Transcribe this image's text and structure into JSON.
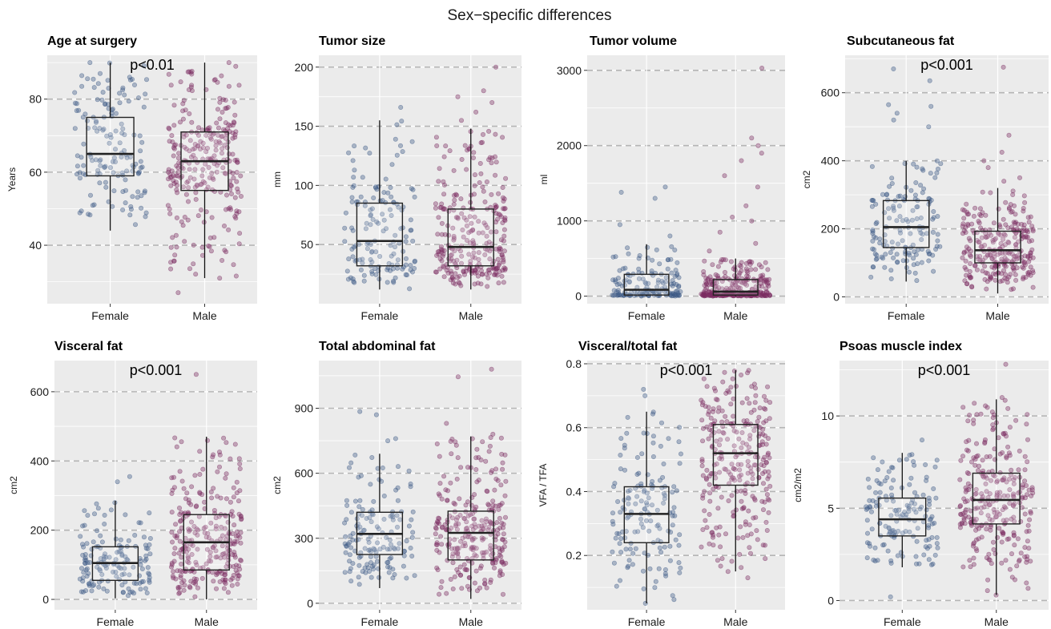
{
  "figure_title": "Sex−specific differences",
  "colors": {
    "female": "#3d5a85",
    "male": "#7b2d62",
    "panel_bg": "#ebebeb",
    "grid": "#ffffff",
    "ref_line": "#b5b5b5"
  },
  "chart_data": [
    {
      "type": "box",
      "title": "Age at surgery",
      "ylabel": "Years",
      "annotation": "p<0.01",
      "categories": [
        "Female",
        "Male"
      ],
      "ylim": [
        24,
        92
      ],
      "yticks": [
        40,
        60,
        80
      ],
      "yticklabels": [
        "40",
        "60",
        "80"
      ],
      "ref_lines": [
        40,
        60,
        80
      ],
      "minor_grid": [
        30,
        50,
        70,
        90
      ],
      "series": [
        {
          "q1": 59,
          "median": 65,
          "q3": 75,
          "whisker_low": 44,
          "whisker_high": 90,
          "n": 150,
          "outliers": [
            90
          ]
        },
        {
          "q1": 55,
          "median": 63,
          "q3": 71,
          "whisker_low": 31,
          "whisker_high": 90,
          "n": 280,
          "outliers": [
            27,
            31,
            90
          ]
        }
      ]
    },
    {
      "type": "box",
      "title": "Tumor size",
      "ylabel": "mm",
      "annotation": "",
      "categories": [
        "Female",
        "Male"
      ],
      "ylim": [
        0,
        210
      ],
      "yticks": [
        50,
        100,
        150,
        200
      ],
      "yticklabels": [
        "50",
        "100",
        "150",
        "200"
      ],
      "ref_lines": [
        50,
        100,
        150,
        200
      ],
      "minor_grid": [
        25,
        75,
        125,
        175
      ],
      "series": [
        {
          "q1": 32,
          "median": 53,
          "q3": 85,
          "whisker_low": 12,
          "whisker_high": 155,
          "n": 150,
          "outliers": [
            166
          ]
        },
        {
          "q1": 32,
          "median": 48,
          "q3": 80,
          "whisker_low": 12,
          "whisker_high": 148,
          "n": 280,
          "outliers": [
            155,
            162,
            170,
            175,
            180,
            200
          ]
        }
      ]
    },
    {
      "type": "box",
      "title": "Tumor volume",
      "ylabel": "ml",
      "annotation": "",
      "categories": [
        "Female",
        "Male"
      ],
      "ylim": [
        -100,
        3200
      ],
      "yticks": [
        0,
        1000,
        2000,
        3000
      ],
      "yticklabels": [
        "0",
        "1000",
        "2000",
        "3000"
      ],
      "ref_lines": [
        0,
        1000,
        2000,
        3000
      ],
      "minor_grid": [
        500,
        1500,
        2500
      ],
      "series": [
        {
          "q1": 15,
          "median": 85,
          "q3": 290,
          "whisker_low": 0,
          "whisker_high": 690,
          "n": 150,
          "outliers": [
            800,
            950,
            1300,
            1380,
            1450
          ]
        },
        {
          "q1": 15,
          "median": 60,
          "q3": 220,
          "whisker_low": 0,
          "whisker_high": 500,
          "n": 280,
          "outliers": [
            600,
            700,
            850,
            1000,
            1050,
            1200,
            1450,
            1600,
            1800,
            1900,
            2000,
            2100,
            3030
          ]
        }
      ]
    },
    {
      "type": "box",
      "title": "Subcutaneous fat",
      "ylabel": "cm2",
      "annotation": "p<0.001",
      "categories": [
        "Female",
        "Male"
      ],
      "ylim": [
        -20,
        710
      ],
      "yticks": [
        0,
        200,
        400,
        600
      ],
      "yticklabels": [
        "0",
        "200",
        "400",
        "600"
      ],
      "ref_lines": [
        0,
        200,
        400,
        600
      ],
      "minor_grid": [
        100,
        300,
        500,
        700
      ],
      "series": [
        {
          "q1": 145,
          "median": 205,
          "q3": 283,
          "whisker_low": 45,
          "whisker_high": 400,
          "n": 150,
          "outliers": [
            500,
            520,
            540,
            560,
            565,
            635,
            670
          ]
        },
        {
          "q1": 100,
          "median": 137,
          "q3": 193,
          "whisker_low": 10,
          "whisker_high": 320,
          "n": 280,
          "outliers": [
            340,
            350,
            380,
            400,
            425,
            475,
            675
          ]
        }
      ]
    },
    {
      "type": "box",
      "title": "Visceral fat",
      "ylabel": "cm2",
      "annotation": "p<0.001",
      "categories": [
        "Female",
        "Male"
      ],
      "ylim": [
        -30,
        690
      ],
      "yticks": [
        0,
        200,
        400,
        600
      ],
      "yticklabels": [
        "0",
        "200",
        "400",
        "600"
      ],
      "ref_lines": [
        0,
        200,
        400,
        600
      ],
      "minor_grid": [
        100,
        300,
        500
      ],
      "series": [
        {
          "q1": 55,
          "median": 105,
          "q3": 152,
          "whisker_low": 3,
          "whisker_high": 285,
          "n": 150,
          "outliers": [
            340,
            355
          ]
        },
        {
          "q1": 85,
          "median": 165,
          "q3": 245,
          "whisker_low": 0,
          "whisker_high": 470,
          "n": 280,
          "outliers": [
            650
          ]
        }
      ]
    },
    {
      "type": "box",
      "title": "Total abdominal fat",
      "ylabel": "cm2",
      "annotation": "",
      "categories": [
        "Female",
        "Male"
      ],
      "ylim": [
        -30,
        1120
      ],
      "yticks": [
        0,
        300,
        600,
        900
      ],
      "yticklabels": [
        "0",
        "300",
        "600",
        "900"
      ],
      "ref_lines": [
        0,
        300,
        600,
        900
      ],
      "minor_grid": [
        150,
        450,
        750,
        1050
      ],
      "series": [
        {
          "q1": 225,
          "median": 320,
          "q3": 420,
          "whisker_low": 70,
          "whisker_high": 690,
          "n": 150,
          "outliers": [
            750,
            760,
            870,
            885
          ]
        },
        {
          "q1": 200,
          "median": 325,
          "q3": 425,
          "whisker_low": 20,
          "whisker_high": 770,
          "n": 280,
          "outliers": [
            780,
            830,
            1045,
            1080
          ]
        }
      ]
    },
    {
      "type": "box",
      "title": "Visceral/total fat",
      "ylabel": "VFA / TFA",
      "annotation": "p<0.001",
      "categories": [
        "Female",
        "Male"
      ],
      "ylim": [
        0.03,
        0.81
      ],
      "yticks": [
        0.2,
        0.4,
        0.6,
        0.8
      ],
      "yticklabels": [
        "0.2",
        "0.4",
        "0.6",
        "0.8"
      ],
      "ref_lines": [
        0.2,
        0.4,
        0.6,
        0.8
      ],
      "minor_grid": [
        0.1,
        0.3,
        0.5,
        0.7
      ],
      "series": [
        {
          "q1": 0.24,
          "median": 0.33,
          "q3": 0.415,
          "whisker_low": 0.05,
          "whisker_high": 0.65,
          "n": 150,
          "outliers": [
            0.05,
            0.7,
            0.72
          ]
        },
        {
          "q1": 0.42,
          "median": 0.52,
          "q3": 0.61,
          "whisker_low": 0.15,
          "whisker_high": 0.78,
          "n": 280,
          "outliers": [
            0.13,
            0.15
          ]
        }
      ]
    },
    {
      "type": "box",
      "title": "Psoas muscle index",
      "ylabel": "cm2/m2",
      "annotation": "p<0.001",
      "categories": [
        "Female",
        "Male"
      ],
      "ylim": [
        -0.5,
        13
      ],
      "yticks": [
        0,
        5,
        10
      ],
      "yticklabels": [
        "0",
        "5",
        "10"
      ],
      "ref_lines": [
        0,
        5,
        10
      ],
      "minor_grid": [
        2.5,
        7.5,
        12.5
      ],
      "series": [
        {
          "q1": 3.5,
          "median": 4.4,
          "q3": 5.55,
          "whisker_low": 1.8,
          "whisker_high": 8.0,
          "n": 150,
          "outliers": [
            0.2,
            8.7
          ]
        },
        {
          "q1": 4.15,
          "median": 5.45,
          "q3": 6.9,
          "whisker_low": 0.3,
          "whisker_high": 10.9,
          "n": 280,
          "outliers": [
            0.3,
            11.0,
            12.8
          ]
        }
      ]
    }
  ]
}
